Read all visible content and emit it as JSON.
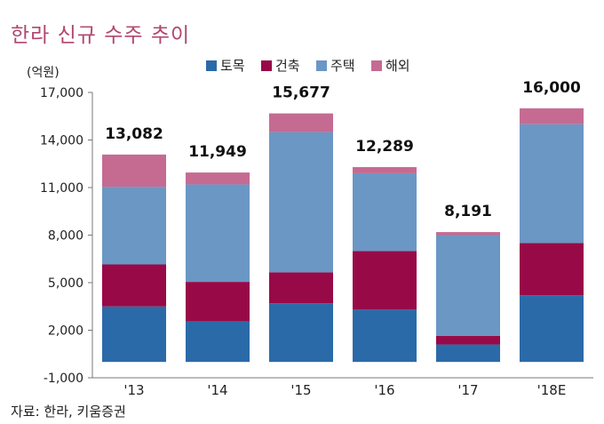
{
  "title": "한라 신규 수주 추이",
  "source": "자료: 한라, 키움증권",
  "chart_data": {
    "type": "bar",
    "stacked": true,
    "unit_label": "(억원)",
    "categories": [
      "'13",
      "'14",
      "'15",
      "'16",
      "'17",
      "'18E"
    ],
    "series": [
      {
        "name": "토목",
        "color": "#2b6aa8",
        "values": [
          3500,
          2550,
          3700,
          3300,
          1100,
          4200
        ]
      },
      {
        "name": "건축",
        "color": "#980a47",
        "values": [
          2650,
          2500,
          1950,
          3700,
          550,
          3300
        ]
      },
      {
        "name": "주택",
        "color": "#6b97c4",
        "values": [
          4900,
          6150,
          8850,
          4900,
          6350,
          7500
        ]
      },
      {
        "name": "해외",
        "color": "#c56b92",
        "values": [
          2032,
          749,
          1177,
          389,
          191,
          1000
        ]
      }
    ],
    "totals": [
      "13,082",
      "11,949",
      "15,677",
      "12,289",
      "8,191",
      "16,000"
    ],
    "yticks": [
      -1000,
      2000,
      5000,
      8000,
      11000,
      14000,
      17000
    ],
    "ytick_labels": [
      "-1,000",
      "2,000",
      "5,000",
      "8,000",
      "11,000",
      "14,000",
      "17,000"
    ],
    "ylim": [
      -1000,
      17000
    ],
    "grid": false,
    "legend_position": "top"
  }
}
